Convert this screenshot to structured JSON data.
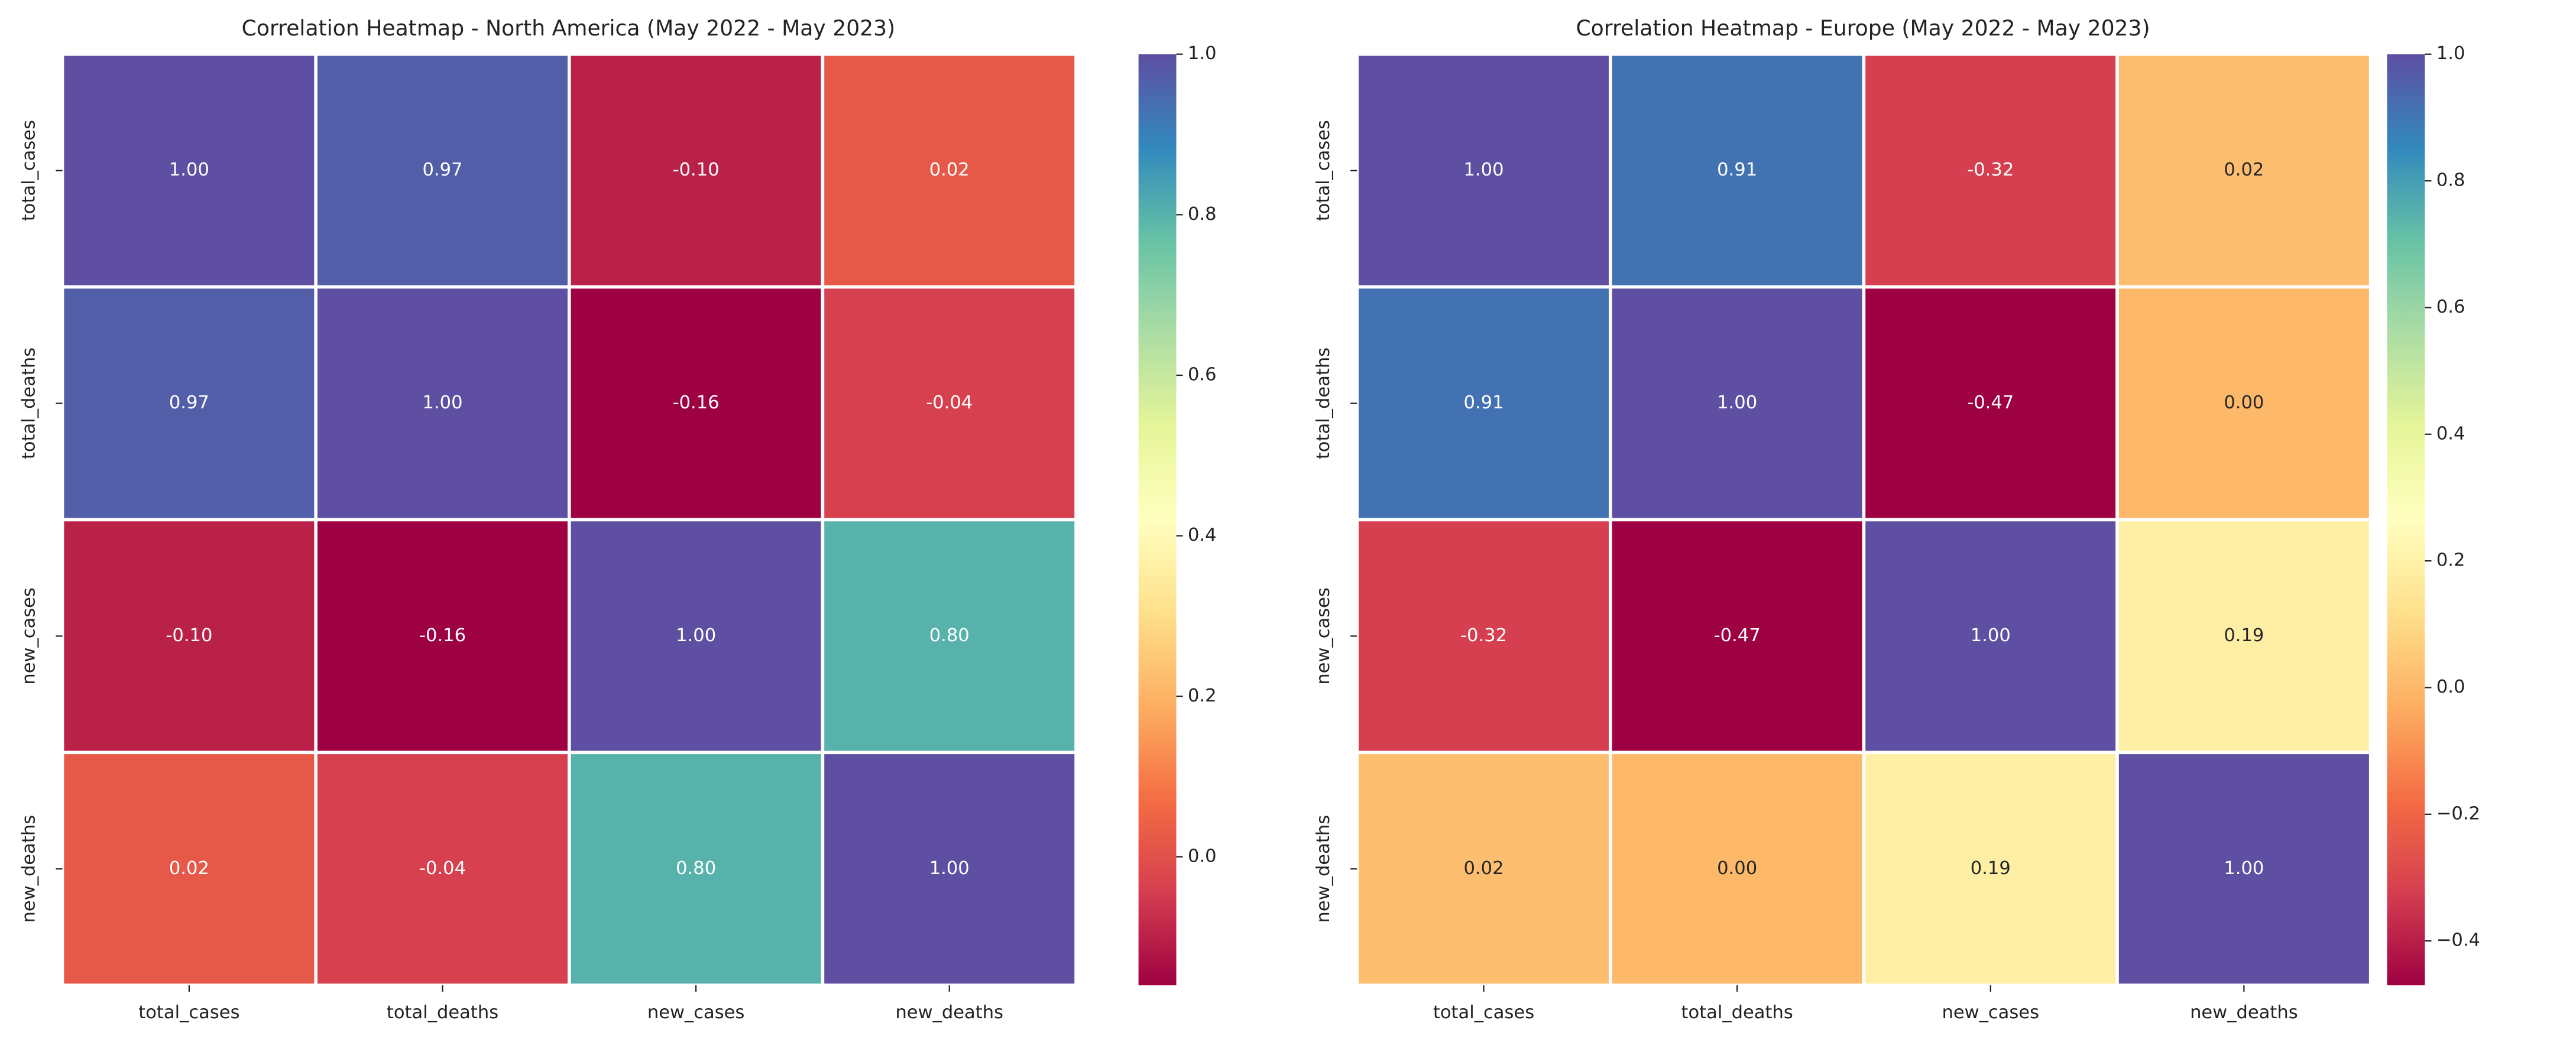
{
  "chart_data": [
    {
      "type": "heatmap",
      "title": "Correlation Heatmap - North America (May 2022 - May 2023)",
      "x_categories": [
        "total_cases",
        "total_deaths",
        "new_cases",
        "new_deaths"
      ],
      "y_categories": [
        "total_cases",
        "total_deaths",
        "new_cases",
        "new_deaths"
      ],
      "values": [
        [
          1,
          0.97,
          -0.1,
          0.02
        ],
        [
          0.97,
          1,
          -0.16,
          -0.04
        ],
        [
          -0.1,
          -0.16,
          1,
          0.8
        ],
        [
          0.02,
          -0.04,
          0.8,
          1
        ]
      ],
      "value_labels": [
        [
          "1.00",
          "0.97",
          "-0.10",
          "0.02"
        ],
        [
          "0.97",
          "1.00",
          "-0.16",
          "-0.04"
        ],
        [
          "-0.10",
          "-0.16",
          "1.00",
          "0.80"
        ],
        [
          "0.02",
          "-0.04",
          "0.80",
          "1.00"
        ]
      ],
      "colormap": "Spectral",
      "clim": [
        -0.16,
        1
      ],
      "cticks": [
        {
          "value": 0,
          "label": "0.0"
        },
        {
          "value": 0.2,
          "label": "0.2"
        },
        {
          "value": 0.4,
          "label": "0.4"
        },
        {
          "value": 0.6,
          "label": "0.6"
        },
        {
          "value": 0.8,
          "label": "0.8"
        },
        {
          "value": 1,
          "label": "1.0"
        }
      ]
    },
    {
      "type": "heatmap",
      "title": "Correlation Heatmap - Europe (May 2022 - May 2023)",
      "x_categories": [
        "total_cases",
        "total_deaths",
        "new_cases",
        "new_deaths"
      ],
      "y_categories": [
        "total_cases",
        "total_deaths",
        "new_cases",
        "new_deaths"
      ],
      "values": [
        [
          1,
          0.91,
          -0.32,
          0.02
        ],
        [
          0.91,
          1,
          -0.47,
          0
        ],
        [
          -0.32,
          -0.47,
          1,
          0.19
        ],
        [
          0.02,
          0,
          0.19,
          1
        ]
      ],
      "value_labels": [
        [
          "1.00",
          "0.91",
          "-0.32",
          "0.02"
        ],
        [
          "0.91",
          "1.00",
          "-0.47",
          "0.00"
        ],
        [
          "-0.32",
          "-0.47",
          "1.00",
          "0.19"
        ],
        [
          "0.02",
          "0.00",
          "0.19",
          "1.00"
        ]
      ],
      "colormap": "Spectral",
      "clim": [
        -0.47,
        1
      ],
      "cticks": [
        {
          "value": -0.4,
          "label": "−0.4"
        },
        {
          "value": -0.2,
          "label": "−0.2"
        },
        {
          "value": 0,
          "label": "0.0"
        },
        {
          "value": 0.2,
          "label": "0.2"
        },
        {
          "value": 0.4,
          "label": "0.4"
        },
        {
          "value": 0.6,
          "label": "0.6"
        },
        {
          "value": 0.8,
          "label": "0.8"
        },
        {
          "value": 1,
          "label": "1.0"
        }
      ]
    }
  ]
}
